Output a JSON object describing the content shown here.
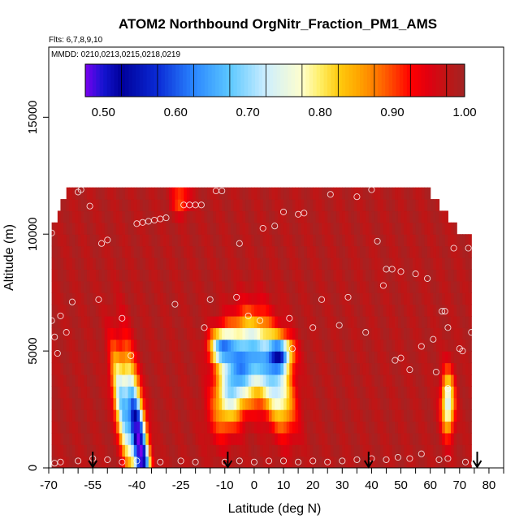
{
  "chart_data": {
    "type": "heatmap",
    "title": "ATOM2 Northbound OrgNitr_Fraction_PM1_AMS",
    "flights_label": "Flts: 6,7,8,9,10",
    "dates_label": "MMDD: 0210,0213,0215,0218,0219",
    "xlabel": "Latitude (deg N)",
    "ylabel": "Altitude (m)",
    "xlim": [
      -70,
      85
    ],
    "ylim": [
      0,
      18000
    ],
    "x_ticks": [
      {
        "value": -70,
        "label": "-70"
      },
      {
        "value": -55,
        "label": "-55"
      },
      {
        "value": -40,
        "label": "-40"
      },
      {
        "value": -25,
        "label": "-25"
      },
      {
        "value": -10,
        "label": "-10"
      },
      {
        "value": 0,
        "label": "0"
      },
      {
        "value": 10,
        "label": "10"
      },
      {
        "value": 20,
        "label": "20"
      },
      {
        "value": 30,
        "label": "30"
      },
      {
        "value": 40,
        "label": "40"
      },
      {
        "value": 50,
        "label": "50"
      },
      {
        "value": 60,
        "label": "60"
      },
      {
        "value": 70,
        "label": "70"
      },
      {
        "value": 80,
        "label": "80"
      }
    ],
    "x_minor_ticks": [
      -65,
      -60,
      -50,
      -45,
      -35,
      -30,
      -20,
      -15,
      -5,
      5,
      15,
      25,
      35,
      45,
      55,
      65,
      75,
      85
    ],
    "y_ticks": [
      {
        "value": 0,
        "label": "0"
      },
      {
        "value": 5000,
        "label": "5000"
      },
      {
        "value": 10000,
        "label": "10000"
      },
      {
        "value": 15000,
        "label": "15000"
      }
    ],
    "colorbar": {
      "range": [
        0.475,
        1.0
      ],
      "ticks": [
        {
          "value": 0.5,
          "label": "0.50"
        },
        {
          "value": 0.6,
          "label": "0.60"
        },
        {
          "value": 0.7,
          "label": "0.70"
        },
        {
          "value": 0.8,
          "label": "0.80"
        },
        {
          "value": 0.9,
          "label": "0.90"
        },
        {
          "value": 1.0,
          "label": "1.00"
        }
      ],
      "stops": [
        [
          0.475,
          "#7a00f0"
        ],
        [
          0.5,
          "#1414d0"
        ],
        [
          0.525,
          "#00009a"
        ],
        [
          0.575,
          "#0a2ad6"
        ],
        [
          0.625,
          "#2a86ff"
        ],
        [
          0.675,
          "#5cc8ff"
        ],
        [
          0.725,
          "#cdeeff"
        ],
        [
          0.775,
          "#ffffcc"
        ],
        [
          0.8,
          "#ffee66"
        ],
        [
          0.825,
          "#ffcc10"
        ],
        [
          0.85,
          "#ffaa00"
        ],
        [
          0.875,
          "#ff7f00"
        ],
        [
          0.9,
          "#ff4400"
        ],
        [
          0.925,
          "#ff0000"
        ],
        [
          0.95,
          "#e00010"
        ],
        [
          0.975,
          "#c01515"
        ],
        [
          1.0,
          "#a22424"
        ]
      ]
    },
    "field": {
      "background_value": 0.985,
      "top_altitude": 12000,
      "x_extent": [
        -69,
        74
      ],
      "features": [
        {
          "lat": -39,
          "alt": 1000,
          "lat_spread": 2.6,
          "alt_spread": 3200,
          "tilt": -0.0011,
          "depth": 0.52
        },
        {
          "lat": -45,
          "alt": 2500,
          "lat_spread": 2.3,
          "alt_spread": 2300,
          "tilt": -0.0011,
          "depth": 0.3
        },
        {
          "lat": -1,
          "alt": 4800,
          "lat_spread": 7.5,
          "alt_spread": 1700,
          "tilt": 0.0,
          "depth": 0.28
        },
        {
          "lat": -8,
          "alt": 3400,
          "lat_spread": 5.5,
          "alt_spread": 1700,
          "tilt": 0.0012,
          "depth": 0.24
        },
        {
          "lat": 8,
          "alt": 3400,
          "lat_spread": 5.0,
          "alt_spread": 1700,
          "tilt": -0.0012,
          "depth": 0.24
        },
        {
          "lat": -11,
          "alt": 5200,
          "lat_spread": 4.0,
          "alt_spread": 700,
          "tilt": 0.0,
          "depth": 0.3
        },
        {
          "lat": 9,
          "alt": 4900,
          "lat_spread": 4.0,
          "alt_spread": 700,
          "tilt": 0.0,
          "depth": 0.3
        },
        {
          "lat": 66,
          "alt": 2800,
          "lat_spread": 2.2,
          "alt_spread": 1300,
          "tilt": 0.0,
          "depth": 0.26
        },
        {
          "lat": -25,
          "alt": 11500,
          "lat_spread": 3.0,
          "alt_spread": 600,
          "tilt": 0.0,
          "depth": 0.1
        }
      ]
    },
    "flight_points": [
      [
        -69,
        10050
      ],
      [
        -69,
        6300
      ],
      [
        -68,
        5600
      ],
      [
        -67,
        4900
      ],
      [
        -68,
        200
      ],
      [
        -66,
        250
      ],
      [
        -66,
        6500
      ],
      [
        -64,
        5800
      ],
      [
        -62,
        7100
      ],
      [
        -60,
        11800
      ],
      [
        -59,
        11900
      ],
      [
        -56,
        11200
      ],
      [
        -53,
        7200
      ],
      [
        -52,
        9600
      ],
      [
        -50,
        9750
      ],
      [
        -45,
        6400
      ],
      [
        -42,
        4800
      ],
      [
        -40,
        10450
      ],
      [
        -38,
        10500
      ],
      [
        -36,
        10550
      ],
      [
        -34,
        10600
      ],
      [
        -32,
        10650
      ],
      [
        -30,
        10700
      ],
      [
        -27,
        7000
      ],
      [
        -24,
        11250
      ],
      [
        -22,
        11250
      ],
      [
        -20,
        11250
      ],
      [
        -18,
        11250
      ],
      [
        -17,
        6000
      ],
      [
        -15,
        7200
      ],
      [
        -13,
        11850
      ],
      [
        -11,
        11850
      ],
      [
        -6,
        7300
      ],
      [
        -5,
        9600
      ],
      [
        -2,
        6500
      ],
      [
        2,
        6300
      ],
      [
        3,
        10250
      ],
      [
        7,
        10350
      ],
      [
        10,
        10950
      ],
      [
        12,
        6400
      ],
      [
        13,
        5100
      ],
      [
        15,
        10850
      ],
      [
        17,
        10900
      ],
      [
        20,
        6000
      ],
      [
        23,
        7200
      ],
      [
        26,
        11700
      ],
      [
        29,
        6100
      ],
      [
        32,
        7300
      ],
      [
        35,
        11600
      ],
      [
        38,
        5800
      ],
      [
        40,
        11900
      ],
      [
        42,
        9700
      ],
      [
        44,
        7800
      ],
      [
        45,
        8500
      ],
      [
        47,
        8500
      ],
      [
        48,
        4600
      ],
      [
        50,
        4700
      ],
      [
        50,
        8400
      ],
      [
        53,
        4200
      ],
      [
        55,
        8300
      ],
      [
        57,
        5200
      ],
      [
        59,
        8100
      ],
      [
        61,
        5500
      ],
      [
        62,
        4100
      ],
      [
        64,
        6700
      ],
      [
        65,
        6700
      ],
      [
        66,
        6000
      ],
      [
        66,
        3400
      ],
      [
        68,
        9400
      ],
      [
        70,
        5100
      ],
      [
        71,
        5000
      ],
      [
        73,
        9400
      ],
      [
        74,
        5800
      ],
      [
        75,
        200
      ],
      [
        -60,
        300
      ],
      [
        -55,
        400
      ],
      [
        -50,
        350
      ],
      [
        -45,
        250
      ],
      [
        -40,
        300
      ],
      [
        -32,
        250
      ],
      [
        -25,
        300
      ],
      [
        -20,
        250
      ],
      [
        -10,
        250
      ],
      [
        -5,
        300
      ],
      [
        0,
        250
      ],
      [
        5,
        300
      ],
      [
        10,
        300
      ],
      [
        15,
        250
      ],
      [
        20,
        300
      ],
      [
        25,
        250
      ],
      [
        30,
        300
      ],
      [
        35,
        350
      ],
      [
        40,
        400
      ],
      [
        45,
        350
      ],
      [
        49,
        450
      ],
      [
        53,
        400
      ],
      [
        57,
        600
      ],
      [
        63,
        350
      ],
      [
        66,
        400
      ],
      [
        72,
        250
      ]
    ],
    "arrows": [
      -55,
      -9,
      39,
      76
    ]
  }
}
